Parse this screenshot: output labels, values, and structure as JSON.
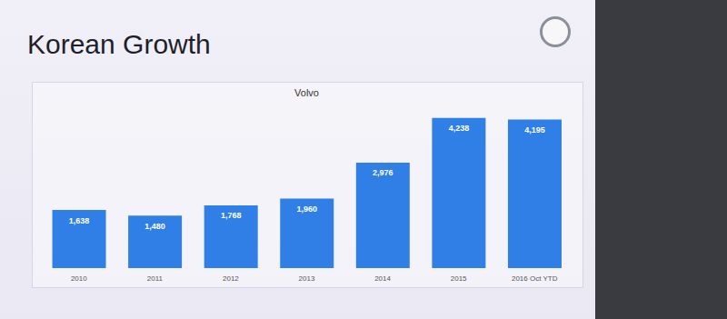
{
  "chart_data": {
    "type": "bar",
    "title": "Korean Growth",
    "subtitle": "Volvo",
    "categories": [
      "2010",
      "2011",
      "2012",
      "2013",
      "2014",
      "2015",
      "2016 Oct YTD"
    ],
    "values": [
      1638,
      1480,
      1768,
      1960,
      2976,
      4238,
      4195
    ],
    "value_labels": [
      "1,638",
      "1,480",
      "1,768",
      "1,960",
      "2,976",
      "4,238",
      "4,195"
    ],
    "color": "#2f7fe6",
    "ylim": [
      0,
      5000
    ],
    "data_labels": true,
    "tick_labels": "x",
    "grid": false
  }
}
